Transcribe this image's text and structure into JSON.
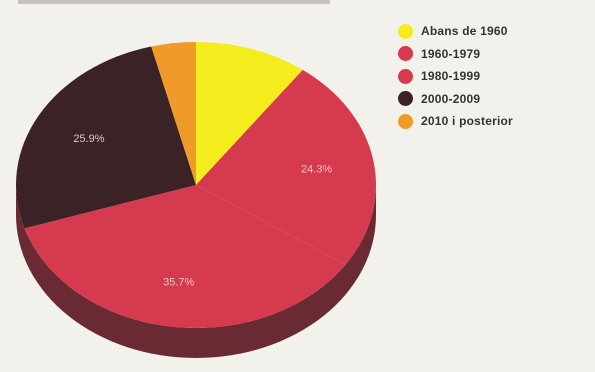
{
  "chart_data": {
    "type": "pie",
    "categories": [
      "Abans de 1960",
      "1960-1979",
      "1980-1999",
      "2000-2009",
      "2010 i posterior"
    ],
    "values": [
      10.1,
      24.3,
      35.7,
      25.9,
      4.0
    ],
    "labels": [
      "",
      "24.3%",
      "35.7%",
      "25.9%",
      ""
    ],
    "colors": [
      "#f5ec1e",
      "#d63a4e",
      "#d63a4e",
      "#3b2226",
      "#f09a2a"
    ],
    "legend_colors": [
      "#f5ec1e",
      "#d63a4e",
      "#d63a4e",
      "#3b2226",
      "#f09a2a"
    ],
    "side_color": "#6a2a33",
    "legend": "right"
  }
}
